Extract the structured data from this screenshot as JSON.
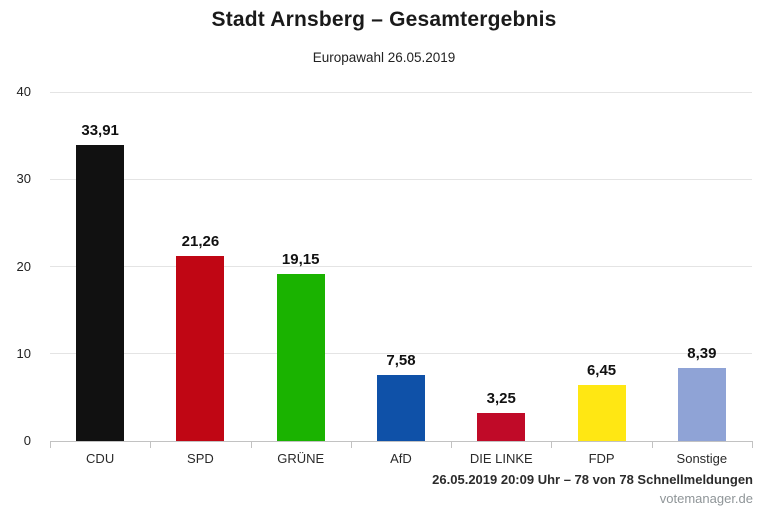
{
  "header": {
    "title": "Stadt Arnsberg – Gesamtergebnis",
    "subtitle": "Europawahl 26.05.2019"
  },
  "chart_data": {
    "type": "bar",
    "title": "Stadt Arnsberg – Gesamtergebnis",
    "subtitle": "Europawahl 26.05.2019",
    "categories": [
      "CDU",
      "SPD",
      "GRÜNE",
      "AfD",
      "DIE LINKE",
      "FDP",
      "Sonstige"
    ],
    "values": [
      33.91,
      21.26,
      19.15,
      7.58,
      3.25,
      6.45,
      8.39
    ],
    "value_labels": [
      "33,91",
      "21,26",
      "19,15",
      "7,58",
      "3,25",
      "6,45",
      "8,39"
    ],
    "bar_colors": [
      "#111111",
      "#c00614",
      "#1ab300",
      "#0f51a8",
      "#c00a28",
      "#ffe713",
      "#8fa3d6"
    ],
    "xlabel": "",
    "ylabel": "",
    "ylim": [
      0,
      40
    ],
    "yticks": [
      0,
      10,
      20,
      30,
      40
    ],
    "ytick_labels": [
      "0",
      "10",
      "20",
      "30",
      "40"
    ],
    "grid": "horizontal gridlines on",
    "legend": "none"
  },
  "footer": {
    "status": "26.05.2019 20:09 Uhr – 78 von 78 Schnellmeldungen",
    "watermark": "votemanager.de"
  },
  "colors": {
    "background": "#ffffff",
    "gridline": "#e4e4e4",
    "axis": "#c2c2c2",
    "title_text": "#1a1a1a",
    "label_text": "#2a2a2a",
    "watermark_text": "#8f9598"
  }
}
